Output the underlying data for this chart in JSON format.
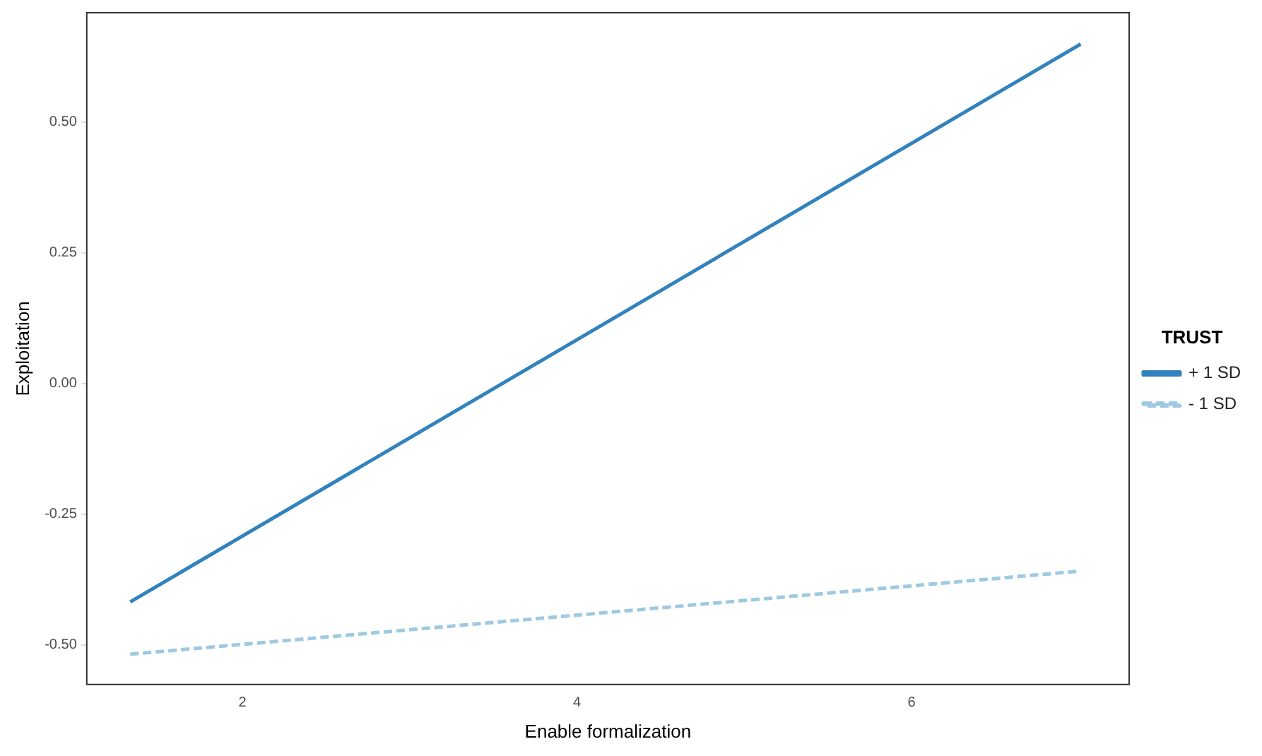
{
  "chart_data": {
    "type": "line",
    "xlabel": "Enable formalization",
    "ylabel": "Exploitation",
    "legend_title": "TRUST",
    "legend": "right",
    "grid": false,
    "marker": "none",
    "xlim": [
      1.07,
      7.3
    ],
    "xticks": [
      2,
      4,
      6
    ],
    "x": [
      1.33,
      7.01
    ],
    "ylim": [
      -0.576,
      0.709
    ],
    "yticks": [
      {
        "value": -0.5,
        "label": "-0.50"
      },
      {
        "value": -0.25,
        "label": "-0.25"
      },
      {
        "value": 0,
        "label": "0.00"
      },
      {
        "value": 0.25,
        "label": "0.25"
      },
      {
        "value": 0.5,
        "label": "0.50"
      }
    ],
    "series": [
      {
        "name": "+ 1 SD",
        "color": "#3182bd",
        "line_style": "solid",
        "values": [
          -0.418,
          0.649
        ]
      },
      {
        "name": "- 1 SD",
        "color": "#9ecae1",
        "line_style": "dashed",
        "values": [
          -0.518,
          -0.359
        ]
      }
    ]
  }
}
